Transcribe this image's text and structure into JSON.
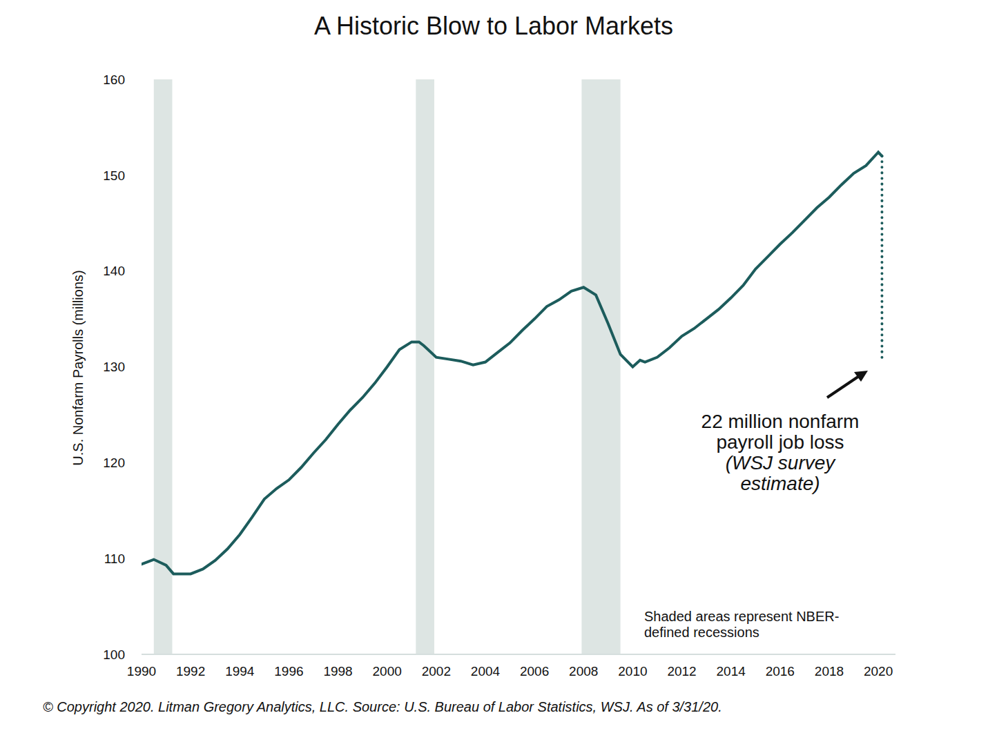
{
  "chart_data": {
    "type": "line",
    "title": "A Historic Blow to Labor Markets",
    "y_label": "U.S. Nonfarm Payrolls (millions)",
    "x": [
      1990,
      1990.5,
      1991,
      1991.3,
      1992,
      1992.5,
      1993,
      1993.5,
      1994,
      1994.5,
      1995,
      1995.5,
      1996,
      1996.5,
      1997,
      1997.5,
      1998,
      1998.5,
      1999,
      1999.5,
      2000,
      2000.5,
      2001,
      2001.3,
      2001.5,
      2002,
      2002.5,
      2003,
      2003.5,
      2004,
      2004.5,
      2005,
      2005.5,
      2006,
      2006.5,
      2007,
      2007.5,
      2008,
      2008.5,
      2009,
      2009.5,
      2010,
      2010.3,
      2010.5,
      2011,
      2011.5,
      2012,
      2012.5,
      2013,
      2013.5,
      2014,
      2014.5,
      2015,
      2015.5,
      2016,
      2016.5,
      2017,
      2017.5,
      2018,
      2018.5,
      2019,
      2019.5,
      2020,
      2020.15,
      2020.15
    ],
    "series": [
      {
        "color": "#1c5c5c",
        "line_style": "solid",
        "values": [
          109.4,
          109.9,
          109.3,
          108.4,
          108.4,
          108.9,
          109.8,
          111.0,
          112.5,
          114.3,
          116.2,
          117.3,
          118.2,
          119.5,
          121.0,
          122.4,
          124.0,
          125.5,
          126.8,
          128.3,
          130.0,
          131.8,
          132.6,
          132.6,
          132.2,
          131.0,
          130.8,
          130.6,
          130.2,
          130.5,
          131.5,
          132.5,
          133.8,
          135.0,
          136.3,
          137.0,
          137.9,
          138.3,
          137.5,
          134.5,
          131.3,
          130.0,
          130.7,
          130.5,
          131.0,
          132.0,
          133.2,
          134.0,
          135.0,
          136.0,
          137.2,
          138.5,
          140.2,
          141.5,
          142.8,
          144.0,
          145.3,
          146.6,
          147.7,
          149.0,
          150.2,
          151.0,
          152.4,
          152.0,
          null
        ]
      },
      {
        "color": "#1c5c5c",
        "line_style": "dotted",
        "values": [
          null,
          null,
          null,
          null,
          null,
          null,
          null,
          null,
          null,
          null,
          null,
          null,
          null,
          null,
          null,
          null,
          null,
          null,
          null,
          null,
          null,
          null,
          null,
          null,
          null,
          null,
          null,
          null,
          null,
          null,
          null,
          null,
          null,
          null,
          null,
          null,
          null,
          null,
          null,
          null,
          null,
          null,
          null,
          null,
          null,
          null,
          null,
          null,
          null,
          null,
          null,
          null,
          null,
          null,
          null,
          null,
          null,
          null,
          null,
          null,
          null,
          null,
          null,
          152.0,
          130.5
        ]
      }
    ],
    "xlim": [
      1990,
      2020.7
    ],
    "xticks": [
      1990,
      1992,
      1994,
      1996,
      1998,
      2000,
      2002,
      2004,
      2006,
      2008,
      2010,
      2012,
      2014,
      2016,
      2018,
      2020
    ],
    "ylim": [
      100,
      160
    ],
    "yticks": [
      100,
      110,
      120,
      130,
      140,
      150,
      160
    ],
    "grid": false,
    "legend": "none",
    "recessions": [
      [
        1990.5,
        1991.25
      ],
      [
        2001.17,
        2001.92
      ],
      [
        2007.92,
        2009.5
      ]
    ],
    "recession_color": "#dde5e3",
    "annotation": [
      "22 million nonfarm",
      "payroll job loss",
      "(WSJ survey",
      "estimate)"
    ],
    "note": [
      "Shaded areas represent NBER-",
      "defined recessions"
    ],
    "source": "© Copyright 2020. Litman Gregory Analytics, LLC. Source: U.S. Bureau of Labor Statistics, WSJ. As of 3/31/20."
  }
}
